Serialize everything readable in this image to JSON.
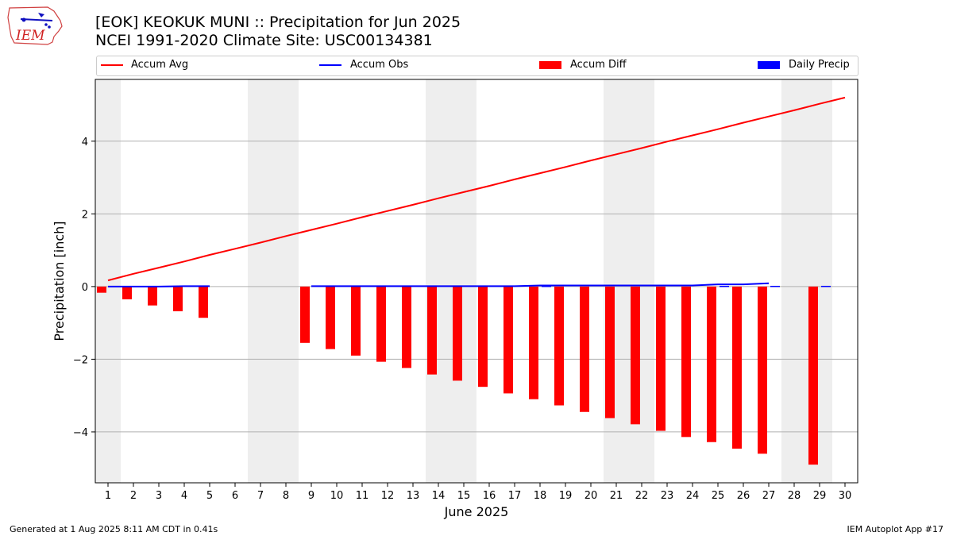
{
  "header": {
    "title_line1": "[EOK] KEOKUK MUNI :: Precipitation for Jun 2025",
    "title_line2": "NCEI 1991-2020 Climate Site: USC00134381"
  },
  "logo": {
    "text": "IEM"
  },
  "footer": {
    "left": "Generated at 1 Aug 2025 8:11 AM CDT in 0.41s",
    "right": "IEM Autoplot App #17"
  },
  "chart_data": {
    "type": "bar",
    "xlabel": "June 2025",
    "ylabel": "Precipitation [inch]",
    "xlim": [
      0.5,
      30.5
    ],
    "ylim": [
      -5.4,
      5.7
    ],
    "yticks": [
      4,
      2,
      0,
      -2,
      -4
    ],
    "ytick_labels": [
      "4",
      "2",
      "0",
      "−2",
      "−4"
    ],
    "grid": true,
    "legend_position": "top",
    "legend": [
      {
        "name": "Accum Avg",
        "kind": "line",
        "color": "#ff0000"
      },
      {
        "name": "Accum Obs",
        "kind": "line",
        "color": "#0000ff"
      },
      {
        "name": "Accum Diff",
        "kind": "bar",
        "color": "#ff0000"
      },
      {
        "name": "Daily Precip",
        "kind": "bar",
        "color": "#0000ff"
      }
    ],
    "weekend_spans": [
      [
        0.5,
        1.5
      ],
      [
        6.5,
        8.5
      ],
      [
        13.5,
        15.5
      ],
      [
        20.5,
        22.5
      ],
      [
        27.5,
        29.5
      ]
    ],
    "days": [
      1,
      2,
      3,
      4,
      5,
      6,
      7,
      8,
      9,
      10,
      11,
      12,
      13,
      14,
      15,
      16,
      17,
      18,
      19,
      20,
      21,
      22,
      23,
      24,
      25,
      26,
      27,
      28,
      29,
      30
    ],
    "accum_avg": [
      0.17,
      0.35,
      0.52,
      0.69,
      0.87,
      1.04,
      1.21,
      1.39,
      1.56,
      1.73,
      1.91,
      2.08,
      2.25,
      2.43,
      2.6,
      2.77,
      2.95,
      3.12,
      3.29,
      3.47,
      3.64,
      3.81,
      3.99,
      4.16,
      4.33,
      4.51,
      4.68,
      4.85,
      5.03,
      5.2
    ],
    "accum_obs": [
      0.0,
      0.0,
      0.0,
      0.01,
      0.01,
      null,
      null,
      null,
      0.01,
      0.01,
      0.01,
      0.01,
      0.01,
      0.01,
      0.01,
      0.01,
      0.01,
      0.03,
      0.03,
      0.03,
      0.03,
      0.03,
      0.03,
      0.03,
      0.06,
      0.06,
      0.09,
      null,
      null,
      null
    ],
    "accum_diff": [
      -0.17,
      -0.35,
      -0.52,
      -0.68,
      -0.86,
      null,
      null,
      null,
      -1.55,
      -1.72,
      -1.9,
      -2.07,
      -2.24,
      -2.42,
      -2.59,
      -2.76,
      -2.94,
      -3.1,
      -3.27,
      -3.45,
      -3.62,
      -3.79,
      -3.97,
      -4.14,
      -4.28,
      -4.46,
      -4.6,
      null,
      -4.9,
      null
    ],
    "daily_precip": [
      0,
      0,
      0,
      0,
      0,
      null,
      null,
      null,
      0,
      0,
      0,
      0,
      0,
      0,
      0,
      0,
      0,
      0.02,
      0,
      0,
      0,
      0,
      0,
      0,
      0.02,
      0,
      0.02,
      0,
      0.02,
      null
    ]
  }
}
